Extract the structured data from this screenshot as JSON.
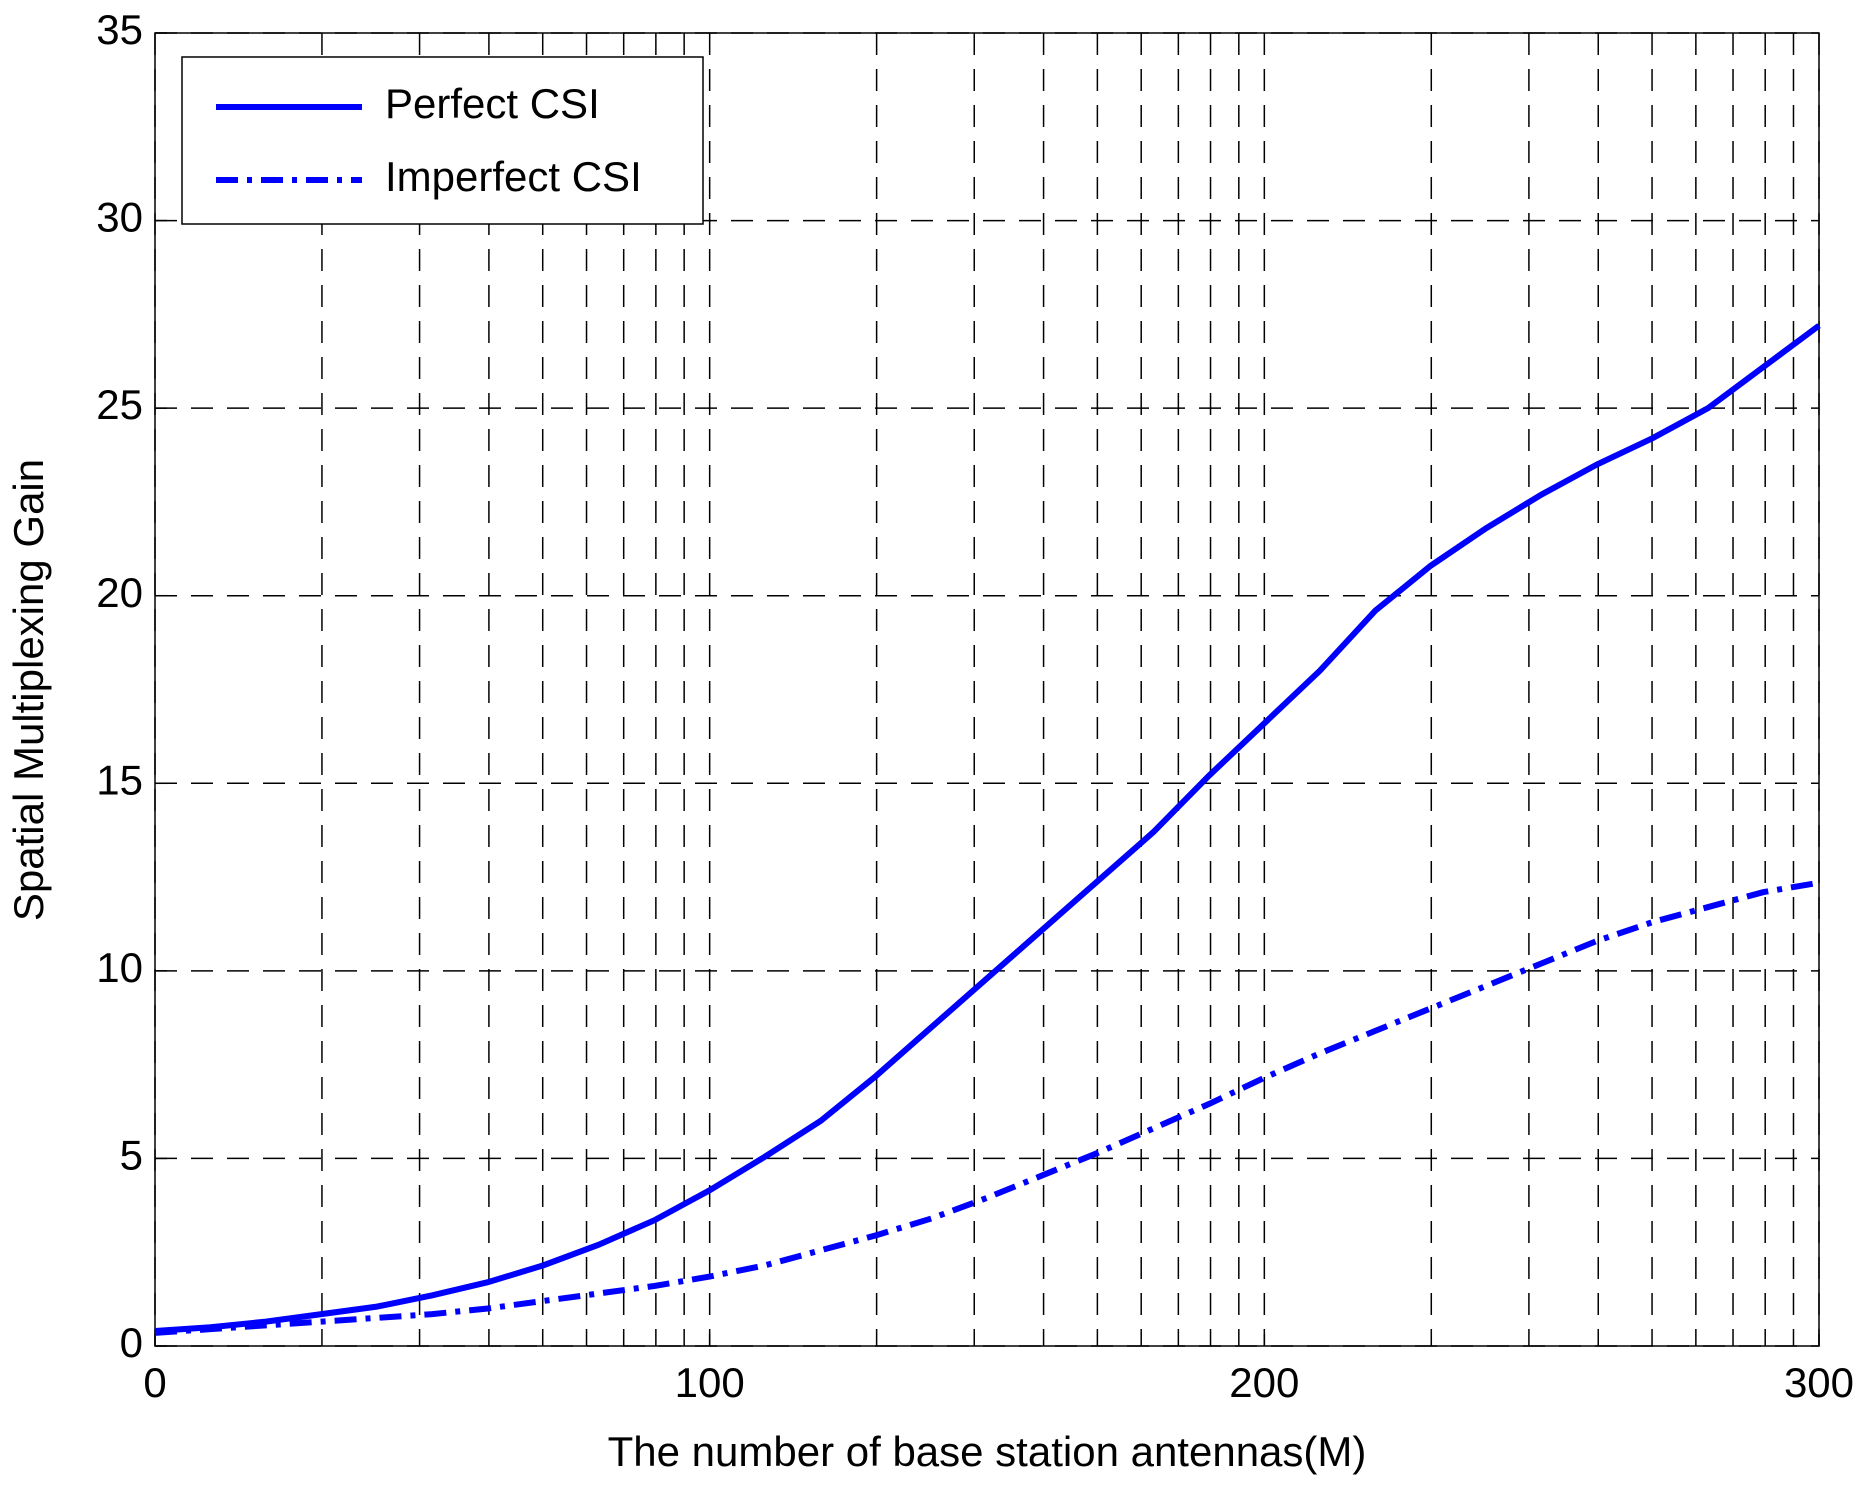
{
  "chart_data": {
    "type": "line",
    "x_label": "The number of base station antennas(M)",
    "y_label": "Spatial Multiplexing Gain",
    "x": [
      0,
      10,
      20,
      30,
      40,
      50,
      60,
      70,
      80,
      90,
      100,
      110,
      120,
      130,
      140,
      150,
      160,
      170,
      180,
      190,
      200,
      210,
      220,
      230,
      240,
      250,
      260,
      270,
      280,
      290,
      300
    ],
    "series": [
      {
        "name": "Perfect CSI",
        "color": "#0000ff",
        "dash": "solid",
        "values": [
          0.4,
          0.5,
          0.65,
          0.85,
          1.05,
          1.35,
          1.7,
          2.15,
          2.7,
          3.35,
          4.15,
          5.05,
          6.0,
          7.2,
          8.5,
          9.8,
          11.1,
          12.4,
          13.7,
          15.2,
          16.6,
          18.0,
          19.6,
          20.8,
          21.8,
          22.7,
          23.5,
          24.2,
          25.0,
          26.1,
          27.2
        ]
      },
      {
        "name": "Imperfect CSI",
        "color": "#0000ff",
        "dash": "dashdot",
        "values": [
          0.35,
          0.45,
          0.55,
          0.65,
          0.75,
          0.85,
          1.0,
          1.2,
          1.4,
          1.6,
          1.85,
          2.15,
          2.55,
          2.95,
          3.4,
          3.95,
          4.55,
          5.15,
          5.8,
          6.45,
          7.15,
          7.8,
          8.4,
          9.0,
          9.6,
          10.2,
          10.8,
          11.3,
          11.7,
          12.1,
          12.35
        ]
      }
    ],
    "xlim": [
      0,
      300
    ],
    "xticks": [
      0,
      100,
      200,
      300
    ],
    "ylim": [
      0,
      35
    ],
    "yticks": [
      0,
      5,
      10,
      15,
      20,
      25,
      30,
      35
    ],
    "x_minor_grid": [
      30.1,
      47.7,
      60.2,
      69.9,
      77.8,
      84.5,
      90.3,
      95.4,
      130.1,
      147.7,
      160.2,
      169.9,
      177.8,
      184.5,
      190.3,
      195.4,
      230.1,
      247.7,
      260.2,
      269.9,
      277.8,
      284.5,
      290.3,
      295.4
    ],
    "grid": true,
    "legend": "upper left"
  }
}
